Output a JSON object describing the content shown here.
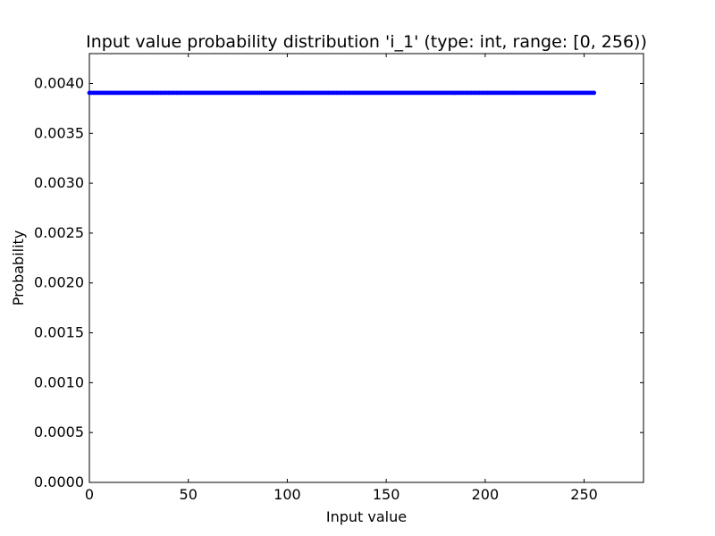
{
  "chart_data": {
    "type": "scatter",
    "title": "Input value probability distribution 'i_1' (type: int, range: [0, 256))",
    "xlabel": "Input value",
    "ylabel": "Probability",
    "xlim": [
      0,
      280
    ],
    "ylim": [
      0,
      0.0043
    ],
    "xticks": [
      0,
      50,
      100,
      150,
      200,
      250
    ],
    "xtick_labels": [
      "0",
      "50",
      "100",
      "150",
      "200",
      "250"
    ],
    "yticks": [
      0,
      0.0005,
      0.001,
      0.0015,
      0.002,
      0.0025,
      0.003,
      0.0035,
      0.004
    ],
    "ytick_labels": [
      "0.0000",
      "0.0005",
      "0.0010",
      "0.0015",
      "0.0020",
      "0.0025",
      "0.0030",
      "0.0035",
      "0.0040"
    ],
    "grid": false,
    "series": [
      {
        "color": "#0000ff",
        "x_range": [
          0,
          255
        ],
        "x_step": 1,
        "y": 0.00390625
      }
    ]
  }
}
